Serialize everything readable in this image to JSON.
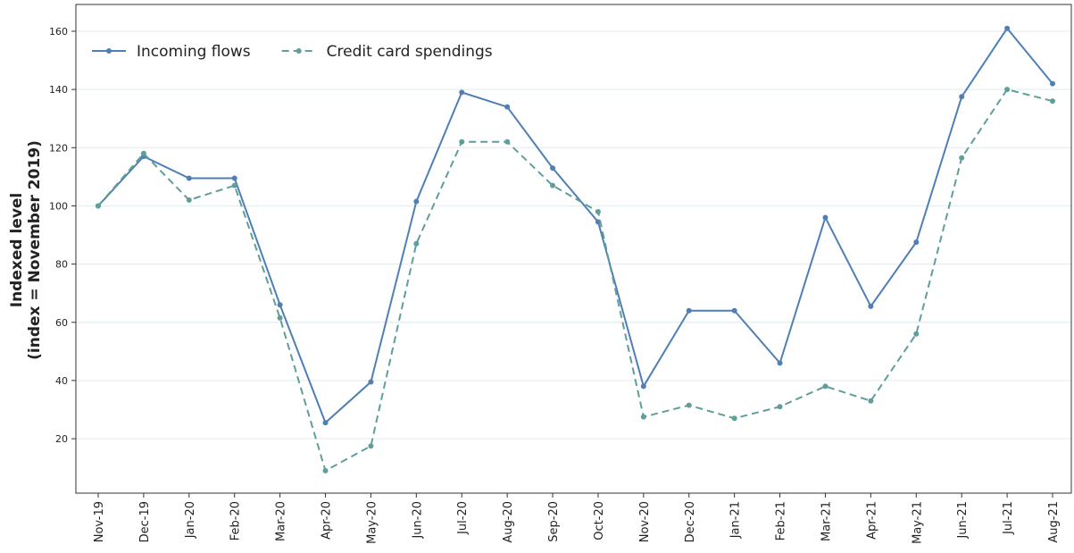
{
  "chart_data": {
    "type": "line",
    "ylabel": [
      "Indexed level",
      "(index = November 2019)"
    ],
    "categories": [
      "Nov-19",
      "Dec-19",
      "Jan-20",
      "Feb-20",
      "Mar-20",
      "Apr-20",
      "May-20",
      "Jun-20",
      "Jul-20",
      "Aug-20",
      "Sep-20",
      "Oct-20",
      "Nov-20",
      "Dec-20",
      "Jan-21",
      "Feb-21",
      "Mar-21",
      "Apr-21",
      "May-21",
      "Jun-21",
      "Jul-21",
      "Aug-21"
    ],
    "series": [
      {
        "name": "Incoming flows",
        "color": "#4f7fb5",
        "dash": false,
        "values": [
          100,
          117,
          109.5,
          109.5,
          66,
          25.5,
          39.5,
          101.5,
          139,
          134,
          113,
          94.5,
          38,
          64,
          64,
          46,
          96,
          65.5,
          87.5,
          137.5,
          161,
          142
        ]
      },
      {
        "name": "Credit card spendings",
        "color": "#5f9e9a",
        "dash": true,
        "values": [
          100,
          118,
          102,
          107,
          61.5,
          9,
          17.5,
          87,
          122,
          122,
          107,
          98,
          27.5,
          31.5,
          27,
          31,
          38,
          33,
          56,
          116.5,
          140,
          136
        ]
      }
    ],
    "ylim": [
      1.3,
      169.2
    ],
    "yticks": [
      20,
      40,
      60,
      80,
      100,
      120,
      140,
      160
    ],
    "grid": true,
    "legend": "upper left"
  }
}
